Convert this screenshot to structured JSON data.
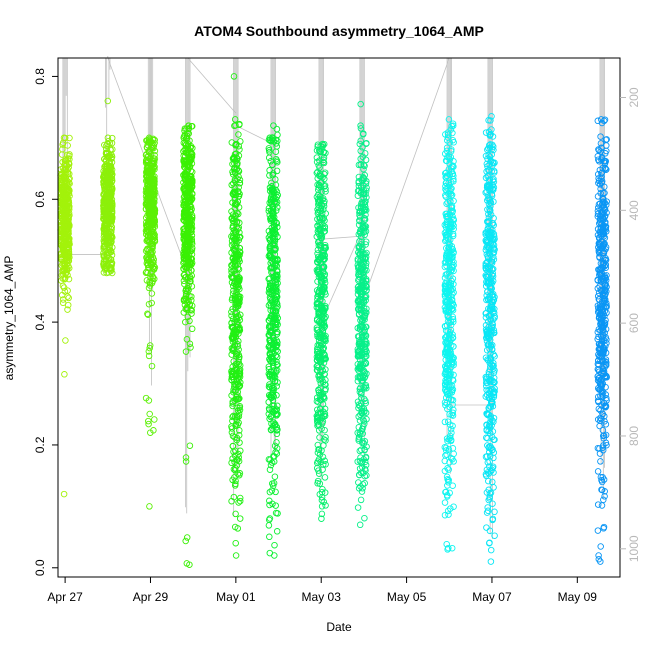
{
  "chart_data": {
    "type": "scatter",
    "title": "ATOM4 Southbound asymmetry_1064_AMP",
    "xlabel": "Date",
    "ylabel": "asymmetry_1064_AMP",
    "xlim": [
      "2023-04-26T20:00",
      "2023-05-10T00:00"
    ],
    "ylim": [
      -0.015,
      0.83
    ],
    "x_ticks": [
      {
        "label": "Apr 27",
        "date": "2023-04-27"
      },
      {
        "label": "Apr 29",
        "date": "2023-04-29"
      },
      {
        "label": "May 01",
        "date": "2023-05-01"
      },
      {
        "label": "May 03",
        "date": "2023-05-03"
      },
      {
        "label": "May 05",
        "date": "2023-05-05"
      },
      {
        "label": "May 07",
        "date": "2023-05-07"
      },
      {
        "label": "May 09",
        "date": "2023-05-09"
      }
    ],
    "y_ticks": [
      0.0,
      0.2,
      0.4,
      0.6,
      0.8
    ],
    "y_tick_labels": [
      "0.0",
      "0.2",
      "0.4",
      "0.6",
      "0.8"
    ],
    "secondary_axis": {
      "side": "right",
      "color": "#b8b8b8",
      "reversed": true,
      "ylim": [
        1050,
        130
      ],
      "ticks": [
        200,
        400,
        600,
        800,
        1000
      ],
      "tick_labels": [
        "200",
        "400",
        "600",
        "800",
        "1000"
      ]
    },
    "marker": "open-circle",
    "color_scale": "time-rainbow",
    "grid": false,
    "legend": "none",
    "series": [
      {
        "date": "2023-04-27T00:00",
        "color": "#a3f20b",
        "min": 0.37,
        "max": 0.7,
        "center": 0.57,
        "spread": 0.05,
        "outliers": [
          0.315,
          0.12
        ]
      },
      {
        "date": "2023-04-28T00:00",
        "color": "#8cf00a",
        "min": 0.48,
        "max": 0.7,
        "center": 0.58,
        "spread": 0.05,
        "outliers": [
          0.76
        ]
      },
      {
        "date": "2023-04-29T00:00",
        "color": "#5cf006",
        "min": 0.22,
        "max": 0.7,
        "center": 0.6,
        "spread": 0.06,
        "outliers": [
          0.1
        ]
      },
      {
        "date": "2023-04-29T21:00",
        "color": "#3af004",
        "min": 0.005,
        "max": 0.72,
        "center": 0.58,
        "spread": 0.07,
        "outliers": []
      },
      {
        "date": "2023-05-01T00:00",
        "color": "#22f013",
        "min": 0.04,
        "max": 0.73,
        "center": 0.45,
        "spread": 0.15,
        "outliers": [
          0.02,
          0.8
        ]
      },
      {
        "date": "2023-05-01T21:00",
        "color": "#0cf032",
        "min": 0.02,
        "max": 0.72,
        "center": 0.45,
        "spread": 0.15,
        "outliers": []
      },
      {
        "date": "2023-05-03T00:00",
        "color": "#06f06d",
        "min": 0.08,
        "max": 0.69,
        "center": 0.45,
        "spread": 0.14,
        "outliers": []
      },
      {
        "date": "2023-05-03T23:00",
        "color": "#07f08a",
        "min": 0.07,
        "max": 0.72,
        "center": 0.45,
        "spread": 0.15,
        "outliers": [
          0.755
        ]
      },
      {
        "date": "2023-05-06T00:00",
        "color": "#0ff5f0",
        "min": 0.03,
        "max": 0.73,
        "center": 0.45,
        "spread": 0.16,
        "outliers": []
      },
      {
        "date": "2023-05-06T23:00",
        "color": "#0ae6f5",
        "min": 0.01,
        "max": 0.735,
        "center": 0.45,
        "spread": 0.16,
        "outliers": []
      },
      {
        "date": "2023-05-09T14:00",
        "color": "#0a96f5",
        "min": 0.01,
        "max": 0.73,
        "center": 0.45,
        "spread": 0.14,
        "outliers": []
      }
    ]
  }
}
